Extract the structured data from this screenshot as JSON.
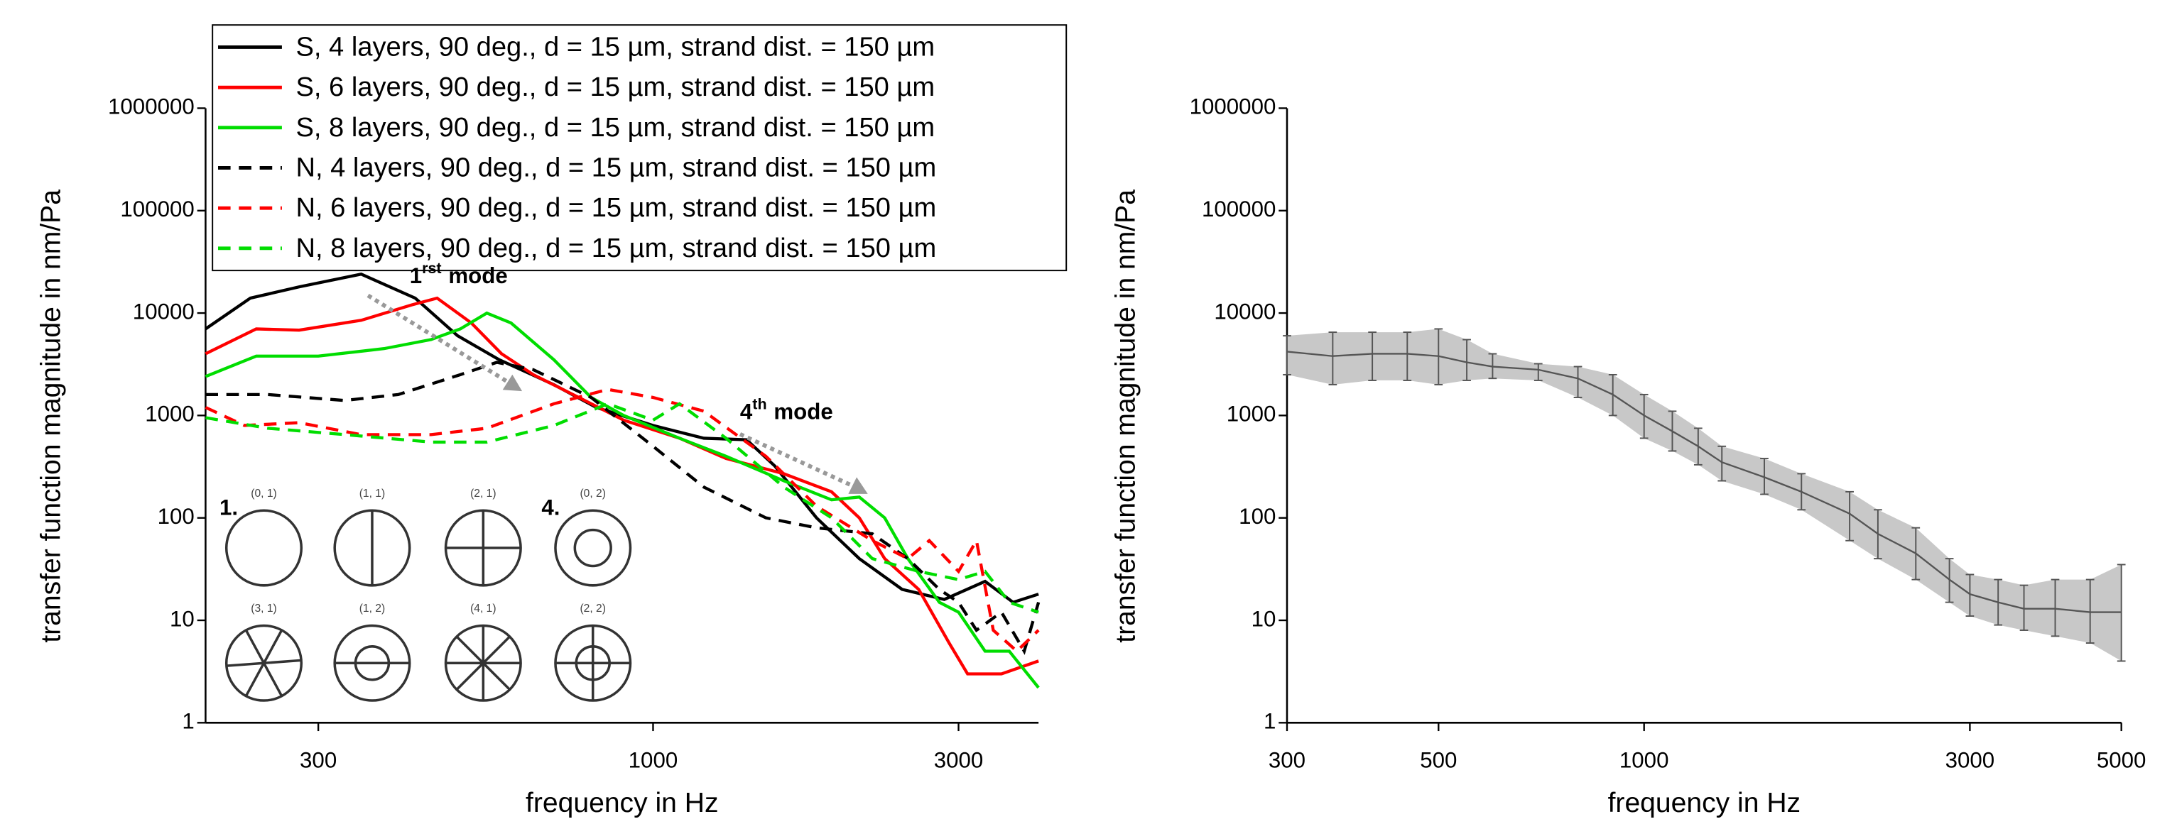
{
  "chart_data": [
    {
      "type": "line",
      "x_label": "frequency in Hz",
      "y_label": "transfer function magnitude in nm/Pa",
      "xlog": true,
      "ylog": true,
      "xlim": [
        200,
        4000
      ],
      "ylim": [
        1,
        1000000
      ],
      "xticks": [
        300,
        1000,
        3000
      ],
      "yticks": [
        1,
        10,
        100,
        1000,
        10000,
        100000,
        1000000
      ],
      "legend": "top-left",
      "series": [
        {
          "name": "S, 4 layers, 90 deg., d = 15 µm, strand dist. = 150 µm",
          "color": "#000000",
          "dash": false,
          "x": [
            200,
            235,
            280,
            350,
            425,
            495,
            575,
            700,
            815,
            1000,
            1200,
            1400,
            1550,
            1800,
            2100,
            2450,
            2850,
            3300,
            3650,
            4000
          ],
          "values": [
            7000,
            14000,
            18000,
            24000,
            14000,
            6000,
            3500,
            2000,
            1200,
            800,
            600,
            580,
            320,
            100,
            40,
            20,
            16,
            24,
            15,
            18
          ]
        },
        {
          "name": "S, 6 layers, 90 deg., d = 15 µm, strand dist. = 150 µm",
          "color": "#ff0000",
          "dash": false,
          "x": [
            200,
            240,
            280,
            350,
            420,
            460,
            520,
            580,
            650,
            750,
            900,
            1100,
            1300,
            1600,
            1900,
            2100,
            2300,
            2600,
            2900,
            3100,
            3500,
            4000
          ],
          "values": [
            4000,
            7000,
            6800,
            8500,
            12000,
            14000,
            8000,
            4000,
            2500,
            1600,
            900,
            600,
            380,
            270,
            180,
            100,
            40,
            20,
            6,
            3,
            3,
            4
          ]
        },
        {
          "name": "S, 8 layers, 90 deg., d = 15 µm, strand dist. = 150 µm",
          "color": "#00dd00",
          "dash": false,
          "x": [
            200,
            240,
            300,
            380,
            450,
            500,
            550,
            600,
            700,
            800,
            900,
            1100,
            1300,
            1600,
            1900,
            2100,
            2300,
            2500,
            2800,
            3000,
            3300,
            3600,
            4000
          ],
          "values": [
            2400,
            3800,
            3800,
            4500,
            5500,
            7000,
            10000,
            8000,
            3500,
            1500,
            1000,
            600,
            400,
            230,
            150,
            160,
            100,
            40,
            15,
            12,
            5,
            5,
            2.2
          ]
        },
        {
          "name": "N, 4 layers, 90 deg., d = 15 µm, strand dist. = 150 µm",
          "color": "#000000",
          "dash": true,
          "x": [
            200,
            250,
            330,
            400,
            500,
            570,
            650,
            800,
            1000,
            1200,
            1500,
            1800,
            2200,
            2500,
            2800,
            3000,
            3200,
            3500,
            3800,
            4000
          ],
          "values": [
            1600,
            1600,
            1400,
            1600,
            2500,
            3300,
            2800,
            1500,
            500,
            200,
            100,
            80,
            70,
            40,
            20,
            15,
            8,
            12,
            5,
            15
          ]
        },
        {
          "name": "N, 6 layers, 90 deg., d = 15 µm, strand dist. = 150 µm",
          "color": "#ff0000",
          "dash": true,
          "x": [
            200,
            230,
            280,
            350,
            450,
            550,
            700,
            850,
            1000,
            1200,
            1500,
            1800,
            2200,
            2500,
            2700,
            3000,
            3200,
            3400,
            3700,
            4000
          ],
          "values": [
            1200,
            800,
            850,
            650,
            650,
            750,
            1300,
            1800,
            1500,
            1100,
            400,
            130,
            60,
            40,
            60,
            30,
            60,
            8,
            5,
            8
          ]
        },
        {
          "name": "N, 8 layers, 90 deg., d = 15 µm, strand dist. = 150 µm",
          "color": "#00dd00",
          "dash": true,
          "x": [
            200,
            250,
            330,
            450,
            550,
            700,
            850,
            1000,
            1100,
            1300,
            1600,
            1900,
            2200,
            2600,
            3000,
            3300,
            3600,
            4000
          ],
          "values": [
            950,
            750,
            650,
            550,
            550,
            800,
            1300,
            900,
            1300,
            600,
            200,
            100,
            40,
            30,
            25,
            30,
            15,
            12
          ]
        }
      ],
      "annotations": [
        {
          "base": "1",
          "sup": "rst",
          "text": "mode"
        },
        {
          "base": "4",
          "sup": "th",
          "text": "mode"
        }
      ],
      "inset": {
        "markers": [
          "1.",
          "4."
        ],
        "modes": [
          "(0, 1)",
          "(1, 1)",
          "(2, 1)",
          "(0, 2)",
          "(3, 1)",
          "(1, 2)",
          "(4, 1)",
          "(2, 2)"
        ]
      }
    },
    {
      "type": "line",
      "x_label": "frequency in Hz",
      "y_label": "transfer function magnitude in nm/Pa",
      "xlog": true,
      "ylog": true,
      "xlim": [
        300,
        5000
      ],
      "ylim": [
        1,
        1000000
      ],
      "xticks": [
        300,
        500,
        1000,
        3000,
        5000
      ],
      "yticks": [
        1,
        10,
        100,
        1000,
        10000,
        100000,
        1000000
      ],
      "color": "#555555",
      "band_color": "#c8c8c8",
      "x": [
        300,
        350,
        400,
        450,
        500,
        550,
        600,
        700,
        800,
        900,
        1000,
        1100,
        1200,
        1300,
        1500,
        1700,
        2000,
        2200,
        2500,
        2800,
        3000,
        3300,
        3600,
        4000,
        4500,
        5000
      ],
      "values": [
        4200,
        3800,
        4000,
        4000,
        3800,
        3300,
        3000,
        2800,
        2300,
        1600,
        1000,
        700,
        500,
        350,
        250,
        180,
        110,
        70,
        45,
        25,
        18,
        15,
        13,
        13,
        12,
        12
      ],
      "band_low": [
        2500,
        2000,
        2200,
        2200,
        2000,
        2200,
        2300,
        2200,
        1500,
        1000,
        600,
        450,
        330,
        230,
        170,
        120,
        60,
        40,
        25,
        15,
        11,
        9,
        8,
        7,
        6,
        4
      ],
      "band_high": [
        6000,
        6500,
        6500,
        6500,
        7000,
        5500,
        4000,
        3200,
        3000,
        2500,
        1600,
        1100,
        750,
        500,
        380,
        270,
        180,
        120,
        80,
        40,
        28,
        25,
        22,
        25,
        25,
        35
      ]
    }
  ]
}
